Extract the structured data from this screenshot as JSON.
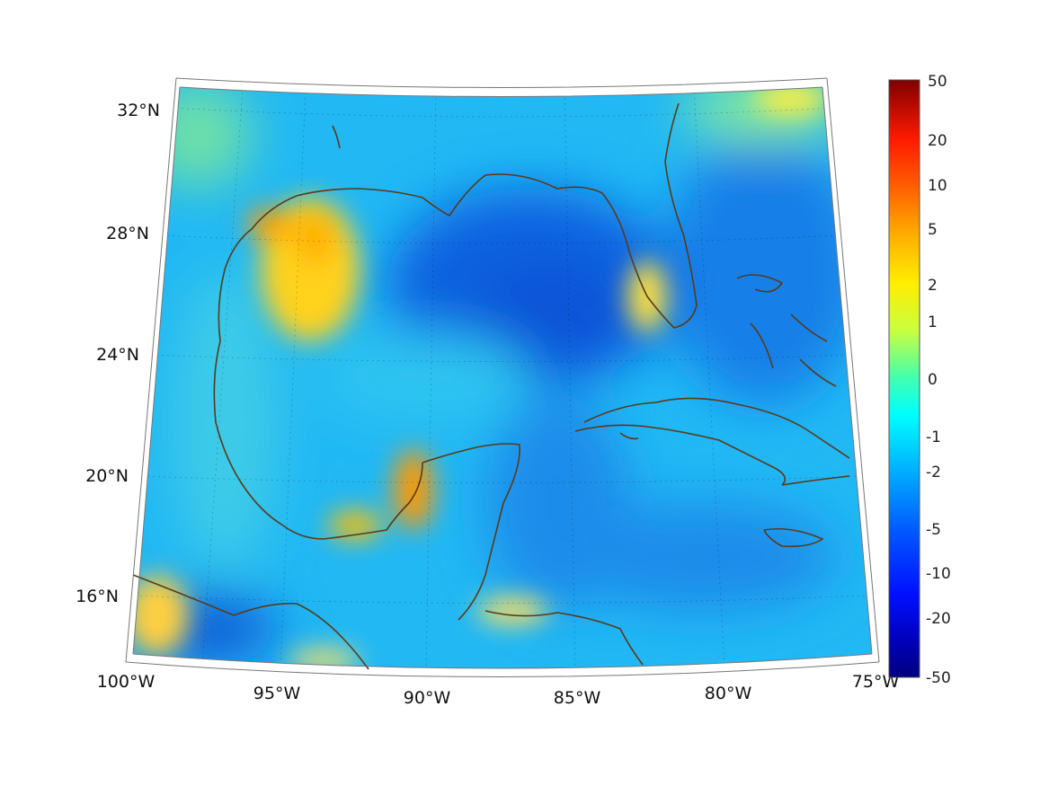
{
  "map": {
    "type": "heatmap",
    "projection": "conic",
    "lon_range": [
      -100,
      -75
    ],
    "lat_range": [
      14,
      33
    ],
    "grid": true,
    "coastline_color": "#5a3a1a",
    "lon_ticks": [
      {
        "value": -100,
        "label": "100°W"
      },
      {
        "value": -95,
        "label": "95°W"
      },
      {
        "value": -90,
        "label": "90°W"
      },
      {
        "value": -85,
        "label": "85°W"
      },
      {
        "value": -80,
        "label": "80°W"
      },
      {
        "value": -75,
        "label": "75°W"
      }
    ],
    "lat_ticks": [
      {
        "value": 16,
        "label": "16°N"
      },
      {
        "value": 20,
        "label": "20°N"
      },
      {
        "value": 24,
        "label": "24°N"
      },
      {
        "value": 28,
        "label": "28°N"
      },
      {
        "value": 32,
        "label": "32°N"
      }
    ]
  },
  "colorbar": {
    "colormap": "jet",
    "scale": "symmetric-log",
    "ticks": [
      "50",
      "20",
      "10",
      "5",
      "2",
      "1",
      "0",
      "-1",
      "-2",
      "-5",
      "-10",
      "-20",
      "-50"
    ],
    "colors": [
      "#800000",
      "#ff0000",
      "#ff8000",
      "#ffff00",
      "#80ff80",
      "#00ffff",
      "#0080ff",
      "#0000ff",
      "#000080"
    ]
  }
}
